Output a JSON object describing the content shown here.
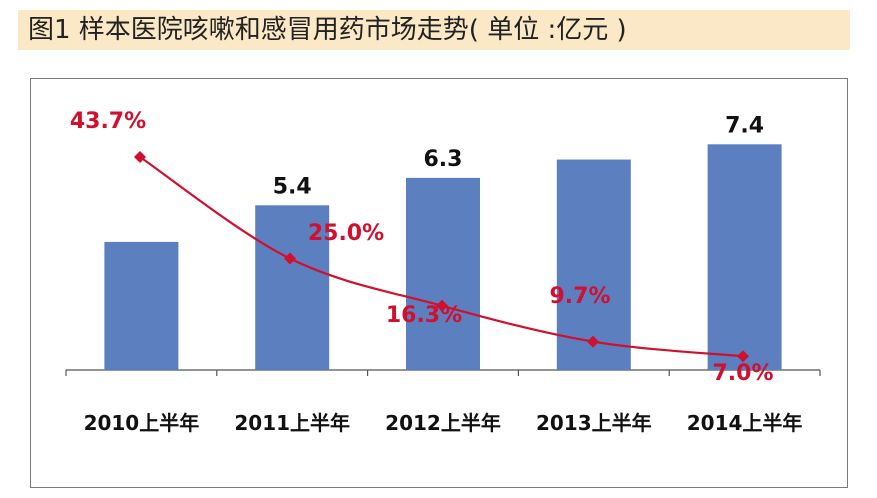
{
  "title": "图1  样本医院咳嗽和感冒用药市场走势( 单位 :亿元 )",
  "chart_data": {
    "type": "bar",
    "categories": [
      "2010上半年",
      "2011上半年",
      "2012上半年",
      "2013上半年",
      "2014上半年"
    ],
    "series": [
      {
        "values": [
          4.2,
          5.4,
          6.3,
          6.9,
          7.4
        ],
        "value_labels": [
          "",
          "5.4",
          "6.3",
          "",
          "7.4"
        ]
      },
      {
        "type": "line",
        "values": [
          43.7,
          25.0,
          16.3,
          9.7,
          7.0
        ],
        "value_labels": [
          "43.7%",
          "25.0%",
          "16.3%",
          "9.7%",
          "7.0%"
        ],
        "unit": "%"
      }
    ],
    "bar_color": "#5b7fbf",
    "line_color": "#d0102e",
    "grid": false,
    "legend": "none"
  }
}
